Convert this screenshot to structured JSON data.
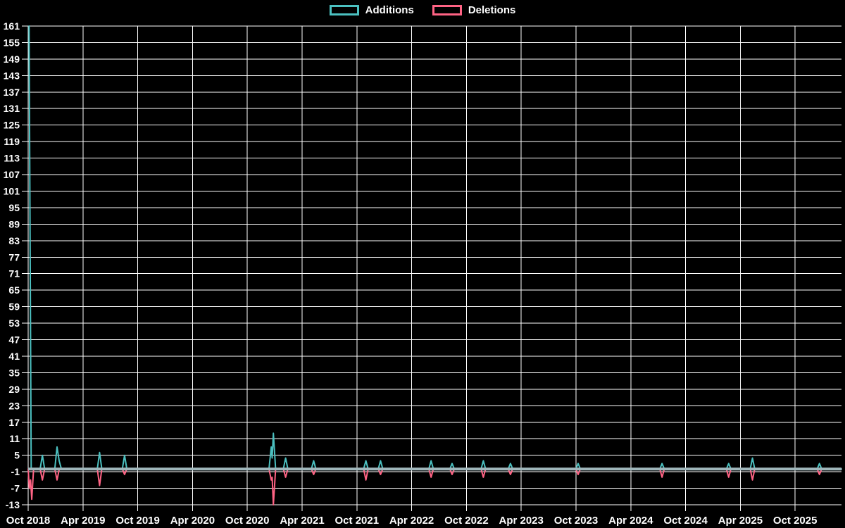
{
  "page": {
    "background": "#000000"
  },
  "legend": {
    "items": [
      {
        "label": "Additions",
        "color": "#4bc0c0"
      },
      {
        "label": "Deletions",
        "color": "#ff6384"
      }
    ]
  },
  "chart_data": {
    "type": "line",
    "title": "",
    "legend_position": "top",
    "grid": true,
    "colors": {
      "additions": "#4bc0c0",
      "deletions": "#ff6384",
      "zero_baseline_overlap": "#9fb6bb",
      "grid": "#ffffff",
      "text": "#ffffff",
      "background": "#000000"
    },
    "x_axis": {
      "tick_labels": [
        "Oct 2018",
        "Apr 2019",
        "Oct 2019",
        "Apr 2020",
        "Oct 2020",
        "Apr 2021",
        "Oct 2021",
        "Apr 2022",
        "Oct 2022",
        "Apr 2023",
        "Oct 2023",
        "Apr 2024",
        "Oct 2024",
        "Apr 2025",
        "Oct 2025"
      ],
      "tick_interval": "6 months"
    },
    "y_axis": {
      "min": -13,
      "max": 161,
      "tick_step": 6,
      "tick_labels": [
        161,
        155,
        149,
        143,
        137,
        131,
        125,
        119,
        113,
        107,
        101,
        95,
        89,
        83,
        77,
        71,
        65,
        59,
        53,
        47,
        41,
        35,
        29,
        23,
        17,
        11,
        5,
        -1,
        -7,
        -13
      ]
    },
    "series": [
      {
        "name": "Additions",
        "color": "#4bc0c0",
        "baseline_value": 0,
        "points": [
          [
            "2018-10-04",
            161
          ],
          [
            "2018-10-11",
            0
          ],
          [
            "2018-11-18",
            5
          ],
          [
            "2019-01-06",
            8
          ],
          [
            "2019-01-13",
            3
          ],
          [
            "2019-05-26",
            6
          ],
          [
            "2019-08-18",
            5
          ],
          [
            "2020-12-20",
            8
          ],
          [
            "2020-12-23",
            4
          ],
          [
            "2020-12-27",
            13
          ],
          [
            "2021-02-07",
            4
          ],
          [
            "2021-05-09",
            3
          ],
          [
            "2021-10-31",
            3
          ],
          [
            "2021-12-19",
            3
          ],
          [
            "2022-06-05",
            3
          ],
          [
            "2022-08-14",
            2
          ],
          [
            "2022-11-27",
            3
          ],
          [
            "2023-02-26",
            2
          ],
          [
            "2023-10-08",
            2
          ],
          [
            "2024-07-14",
            2
          ],
          [
            "2025-02-23",
            2
          ],
          [
            "2025-05-11",
            4
          ],
          [
            "2025-12-21",
            2
          ]
        ]
      },
      {
        "name": "Deletions",
        "color": "#ff6384",
        "baseline_value": 0,
        "points": [
          [
            "2018-10-01",
            0
          ],
          [
            "2018-10-05",
            -7
          ],
          [
            "2018-10-09",
            -4
          ],
          [
            "2018-10-13",
            -11
          ],
          [
            "2018-10-19",
            0
          ],
          [
            "2018-11-18",
            -4
          ],
          [
            "2019-01-06",
            -4
          ],
          [
            "2019-05-26",
            -6
          ],
          [
            "2019-08-18",
            -2
          ],
          [
            "2020-12-20",
            -4
          ],
          [
            "2020-12-23",
            -3
          ],
          [
            "2020-12-27",
            -13
          ],
          [
            "2021-02-07",
            -3
          ],
          [
            "2021-05-09",
            -2
          ],
          [
            "2021-10-31",
            -4
          ],
          [
            "2021-12-19",
            -2
          ],
          [
            "2022-06-05",
            -3
          ],
          [
            "2022-08-14",
            -2
          ],
          [
            "2022-11-27",
            -3
          ],
          [
            "2023-02-26",
            -2
          ],
          [
            "2023-10-08",
            -2
          ],
          [
            "2024-07-14",
            -3
          ],
          [
            "2025-02-23",
            -3
          ],
          [
            "2025-05-11",
            -4
          ],
          [
            "2025-12-21",
            -2
          ]
        ]
      }
    ]
  }
}
